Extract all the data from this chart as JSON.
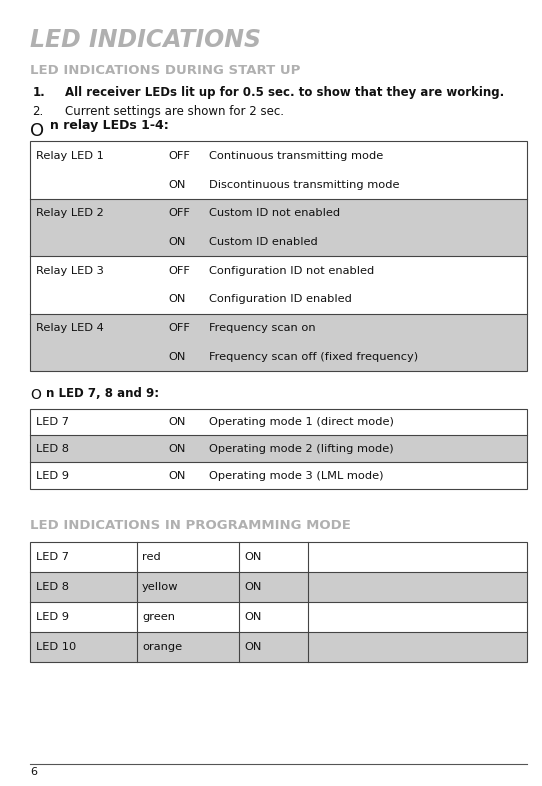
{
  "title": "LED INDICATIONS",
  "title_color": "#b0b0b0",
  "bg_color": "#ffffff",
  "section1_title": "LED INDICATIONS DURING START UP",
  "section1_title_color": "#b0b0b0",
  "point1_num": "1.",
  "point1_text": "All receiver LEDs lit up for 0.5 sec. to show that they are working.",
  "point2_num": "2.",
  "point2_text": "Current settings are shown for 2 sec.",
  "relay_label_O": "O",
  "relay_label_rest": "n relay LEDs 1-4:",
  "table1": [
    {
      "col1": "Relay LED 1",
      "col2": "OFF",
      "col3": "Continuous transmitting mode",
      "bg": "#ffffff"
    },
    {
      "col1": "",
      "col2": "ON",
      "col3": "Discontinuous transmitting mode",
      "bg": "#ffffff"
    },
    {
      "col1": "Relay LED 2",
      "col2": "OFF",
      "col3": "Custom ID not enabled",
      "bg": "#cccccc"
    },
    {
      "col1": "",
      "col2": "ON",
      "col3": "Custom ID enabled",
      "bg": "#cccccc"
    },
    {
      "col1": "Relay LED 3",
      "col2": "OFF",
      "col3": "Configuration ID not enabled",
      "bg": "#ffffff"
    },
    {
      "col1": "",
      "col2": "ON",
      "col3": "Configuration ID enabled",
      "bg": "#ffffff"
    },
    {
      "col1": "Relay LED 4",
      "col2": "OFF",
      "col3": "Frequency scan on",
      "bg": "#cccccc"
    },
    {
      "col1": "",
      "col2": "ON",
      "col3": "Frequency scan off (fixed frequency)",
      "bg": "#cccccc"
    }
  ],
  "led789_label_O": "O",
  "led789_label_rest": "n LED 7, 8 and 9:",
  "table2": [
    {
      "col1": "LED 7",
      "col2": "ON",
      "col3": "Operating mode 1 (direct mode)",
      "bg": "#ffffff"
    },
    {
      "col1": "LED 8",
      "col2": "ON",
      "col3": "Operating mode 2 (lifting mode)",
      "bg": "#cccccc"
    },
    {
      "col1": "LED 9",
      "col2": "ON",
      "col3": "Operating mode 3 (LML mode)",
      "bg": "#ffffff"
    }
  ],
  "section2_title": "LED INDICATIONS IN PROGRAMMING MODE",
  "section2_title_color": "#b0b0b0",
  "table3": [
    {
      "col1": "LED 7",
      "col2": "red",
      "col3": "ON",
      "col4": "",
      "bg": "#ffffff"
    },
    {
      "col1": "LED 8",
      "col2": "yellow",
      "col3": "ON",
      "col4": "",
      "bg": "#cccccc"
    },
    {
      "col1": "LED 9",
      "col2": "green",
      "col3": "ON",
      "col4": "",
      "bg": "#ffffff"
    },
    {
      "col1": "LED 10",
      "col2": "orange",
      "col3": "ON",
      "col4": "",
      "bg": "#cccccc"
    }
  ],
  "footer_line_color": "#555555",
  "footer_number": "6",
  "lm": 0.055,
  "rm": 0.972
}
